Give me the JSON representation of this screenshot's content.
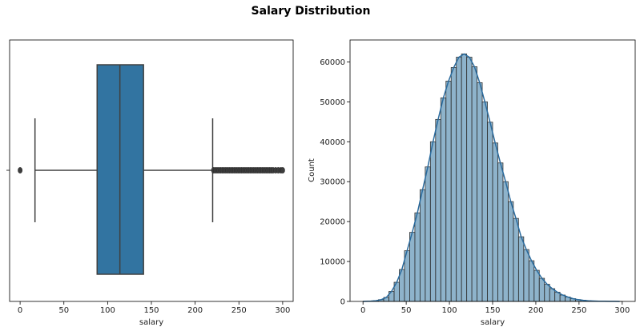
{
  "figure": {
    "title": "Salary Distribution"
  },
  "chart_data": [
    {
      "type": "box",
      "xlabel": "salary",
      "ylabel": "",
      "xlim": [
        -12,
        312
      ],
      "xticks": [
        0,
        50,
        100,
        150,
        200,
        250,
        300
      ],
      "stats": {
        "whisker_low": 17,
        "q1": 88,
        "median": 114,
        "q3": 141,
        "whisker_high": 220
      },
      "outliers_low": [
        0
      ],
      "outliers_high": [
        221,
        223,
        225,
        227,
        229,
        231,
        233,
        235,
        237,
        239,
        241,
        243,
        245,
        247,
        249,
        251,
        253,
        255,
        257,
        259,
        261,
        263,
        265,
        267,
        269,
        271,
        273,
        275,
        277,
        279,
        281,
        283,
        285,
        287,
        289,
        292,
        295,
        298,
        300
      ],
      "colors": {
        "box": "#3274a1",
        "lines": "#404040"
      }
    },
    {
      "type": "histogram",
      "xlabel": "salary",
      "ylabel": "Count",
      "xlim": [
        -15,
        315
      ],
      "ylim": [
        0,
        65500
      ],
      "xticks": [
        0,
        50,
        100,
        150,
        200,
        250,
        300
      ],
      "yticks": [
        0,
        10000,
        20000,
        30000,
        40000,
        50000,
        60000
      ],
      "bins": {
        "start": 0,
        "width": 6
      },
      "counts": [
        30,
        80,
        180,
        450,
        1000,
        2500,
        4800,
        8000,
        12700,
        17300,
        22200,
        28000,
        33700,
        40000,
        45600,
        51000,
        55200,
        58600,
        61200,
        62000,
        61200,
        58800,
        54800,
        50000,
        44900,
        39700,
        34700,
        30000,
        25000,
        20800,
        16200,
        13000,
        10200,
        7800,
        5800,
        4300,
        3200,
        2300,
        1600,
        1100,
        700,
        450,
        280,
        170,
        100,
        60,
        35,
        20,
        12,
        6
      ],
      "kde": true,
      "colors": {
        "bar": "#3274a1",
        "bar_opacity": 0.55,
        "edge": "#333333",
        "kde": "#2a6b9e"
      }
    }
  ]
}
